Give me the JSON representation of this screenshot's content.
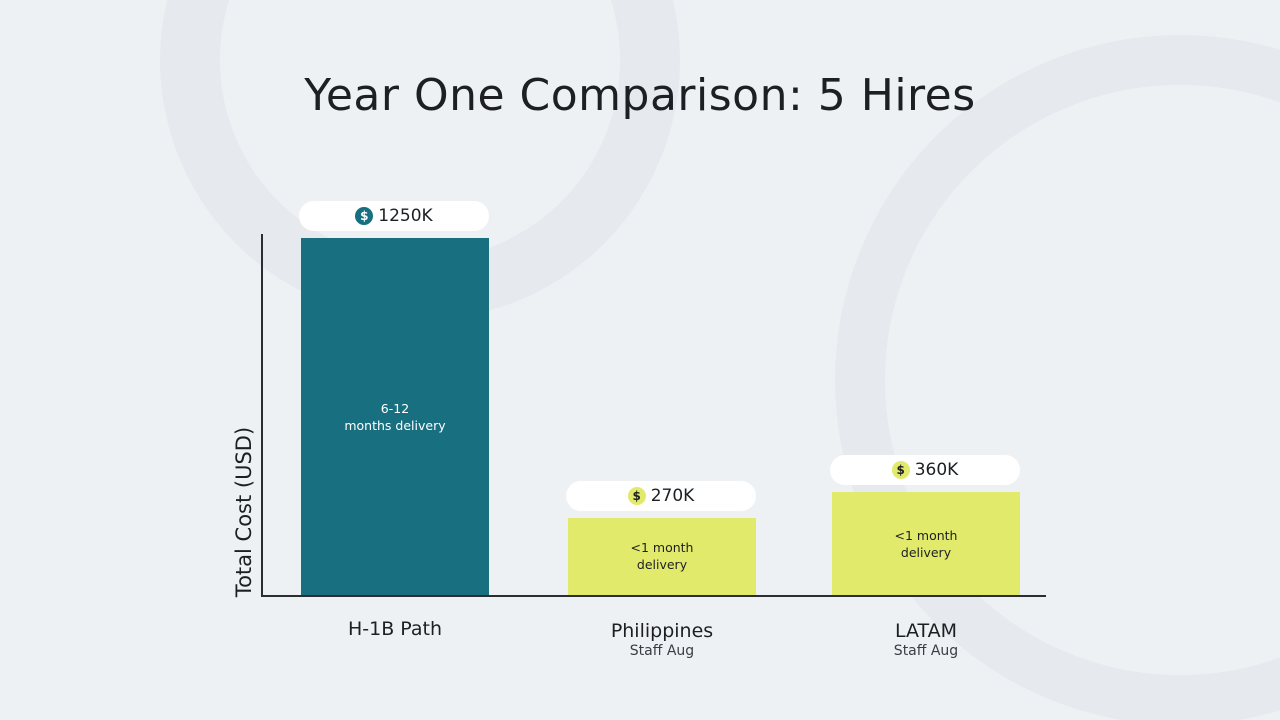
{
  "title": "Year One Comparison: 5 Hires",
  "colors": {
    "primary_bar": "#176f80",
    "secondary_bar": "#e2ea6c",
    "background": "#eef1f4",
    "text": "#1d1f22"
  },
  "chart_data": {
    "type": "bar",
    "title": "Year One Comparison: 5 Hires",
    "xlabel": "",
    "ylabel": "Total Cost (USD)",
    "unit": "K USD",
    "ylim": [
      0,
      1250
    ],
    "grid": false,
    "categories": [
      "H-1B Path",
      "Philippines",
      "LATAM"
    ],
    "category_subtitles": [
      "",
      "Staff Aug",
      "Staff Aug"
    ],
    "values": [
      1250,
      270,
      360
    ],
    "data_labels": [
      "1250K",
      "270K",
      "360K"
    ],
    "bar_annotations": [
      "6-12\nmonths delivery",
      "<1 month\ndelivery",
      "<1 month\ndelivery"
    ],
    "bar_colors": [
      "#176f80",
      "#e2ea6c",
      "#e2ea6c"
    ],
    "label_icon": "dollar-coin-icon"
  }
}
